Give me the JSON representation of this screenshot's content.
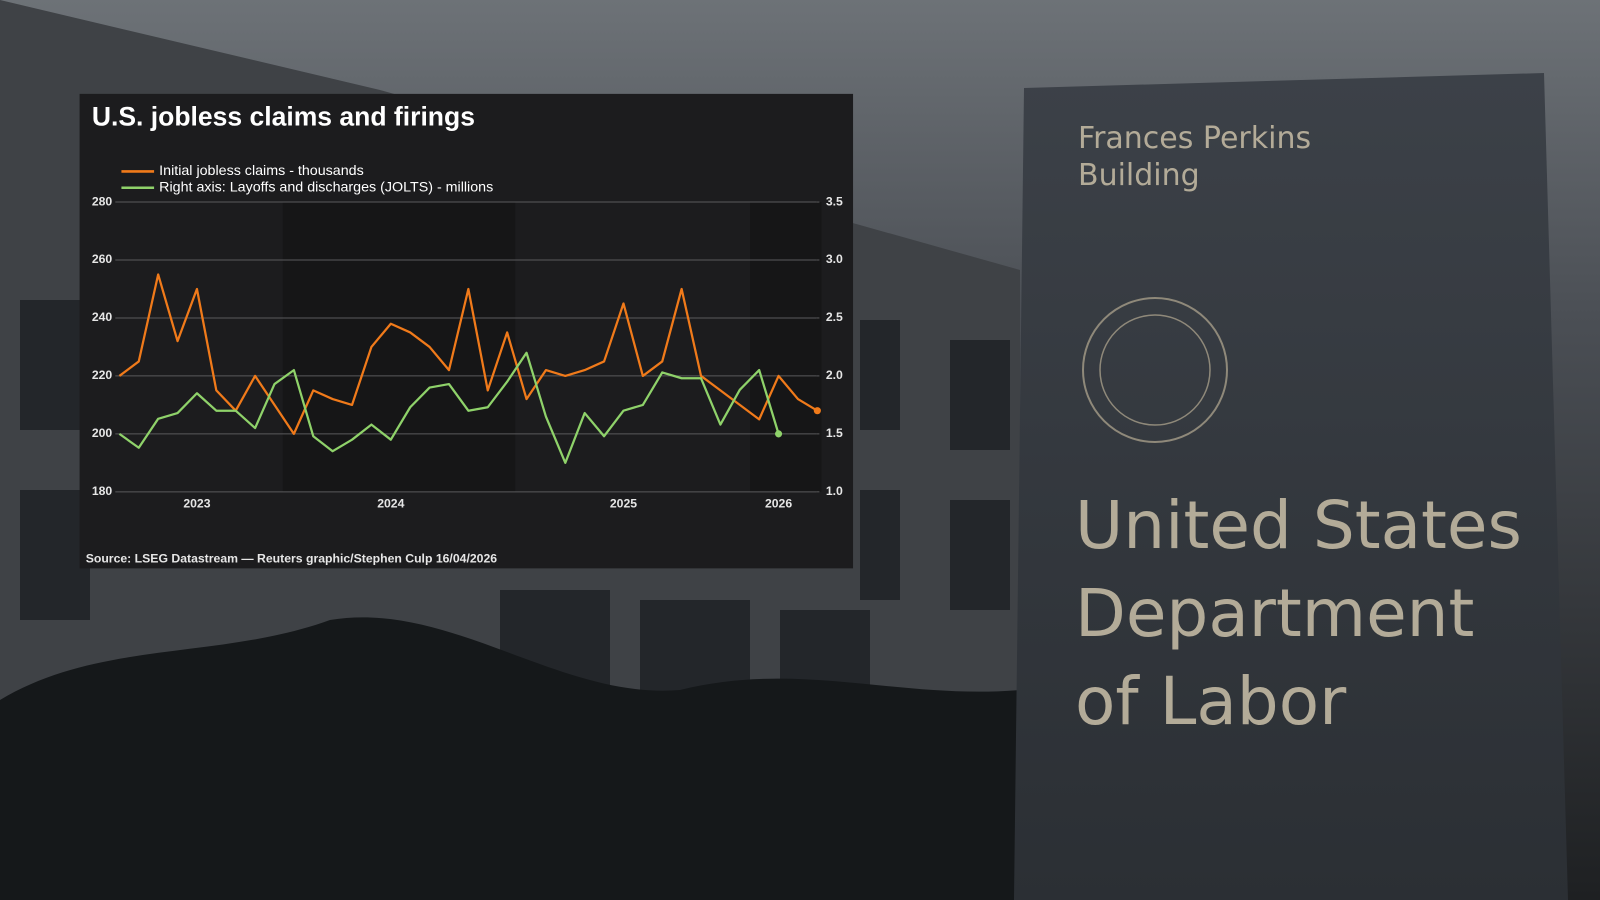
{
  "background": {
    "sign_small": [
      "Frances Perkins",
      "Building"
    ],
    "sign_large": [
      "United States",
      "Department",
      "of Labor"
    ]
  },
  "chart_data": {
    "type": "line",
    "title": "U.S. jobless claims and firings",
    "source": "Source: LSEG Datastream — Reuters graphic/Stephen Culp 16/04/2026",
    "legend": "top-left",
    "grid": true,
    "categories": [
      null,
      null,
      null,
      null,
      "2023",
      null,
      null,
      null,
      null,
      null,
      null,
      null,
      null,
      null,
      "2024",
      null,
      null,
      null,
      null,
      null,
      null,
      null,
      null,
      null,
      null,
      null,
      "2025",
      null,
      null,
      null,
      null,
      null,
      null,
      null,
      "2026",
      null,
      null
    ],
    "ylim": [
      180,
      280
    ],
    "yticks": [
      180,
      200,
      220,
      240,
      260,
      280
    ],
    "y2lim": [
      1,
      3.5
    ],
    "y2ticks": [
      {
        "value": 1,
        "label": "1.0"
      },
      1.5,
      {
        "value": 2,
        "label": "2.0"
      },
      2.5,
      {
        "value": 3,
        "label": "3.0"
      },
      3.5
    ],
    "series": [
      {
        "name": "Initial jobless claims - thousands",
        "color": "#f07a1a",
        "values": [
          220,
          225,
          255,
          232,
          250,
          215,
          208,
          220,
          210,
          200,
          215,
          212,
          210,
          230,
          238,
          235,
          230,
          222,
          250,
          215,
          235,
          212,
          222,
          220,
          222,
          225,
          245,
          220,
          225,
          250,
          220,
          215,
          210,
          205,
          220,
          212,
          208
        ]
      },
      {
        "name": "Right axis: Layoffs and discharges (JOLTS) - millions",
        "color": "#8fd26a",
        "axis": "y2",
        "values": [
          1.5,
          1.38,
          1.63,
          1.68,
          1.85,
          1.7,
          1.7,
          1.55,
          1.93,
          2.05,
          1.48,
          1.35,
          1.45,
          1.58,
          1.45,
          1.73,
          1.9,
          1.93,
          1.7,
          1.73,
          1.95,
          2.2,
          1.65,
          1.25,
          1.68,
          1.48,
          1.7,
          1.75,
          2.03,
          1.98,
          1.98,
          1.58,
          1.88,
          2.05,
          1.5,
          null,
          null
        ]
      }
    ]
  }
}
